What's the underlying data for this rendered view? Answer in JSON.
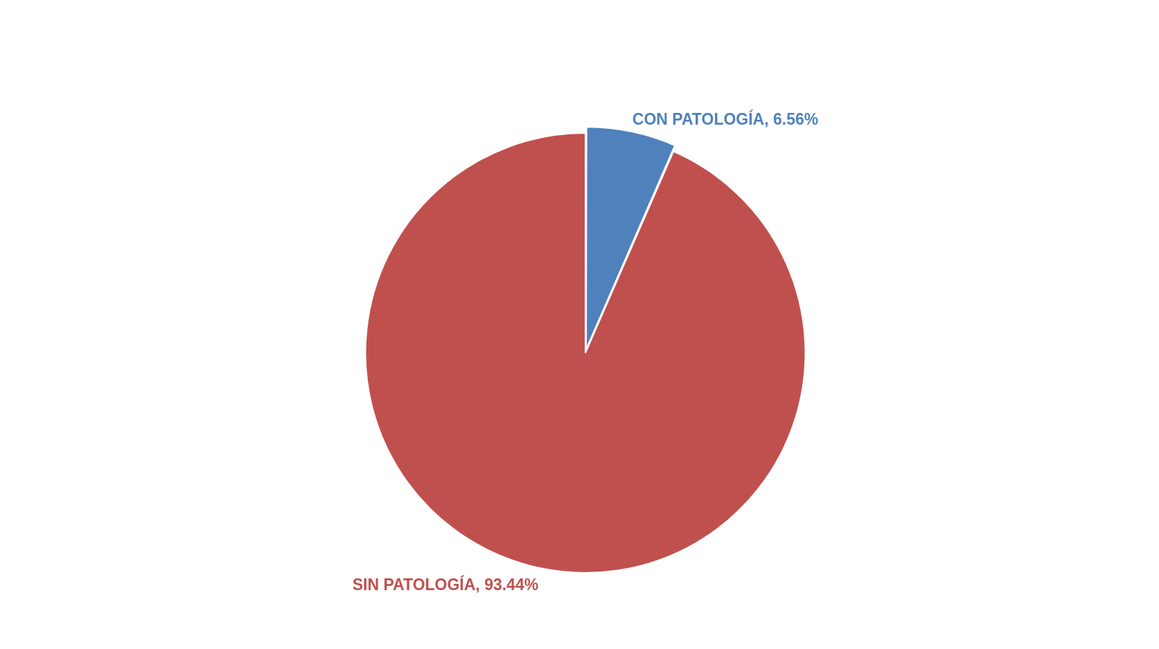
{
  "chart_data": {
    "type": "pie",
    "categories": [
      "CON PATOLOGÍA",
      "SIN PATOLOGÍA"
    ],
    "values": [
      6.56,
      93.44
    ],
    "colors": [
      "#4f81bd",
      "#c0504d"
    ],
    "value_labels": [
      "6.56%",
      "93.44%"
    ],
    "legend": false
  }
}
